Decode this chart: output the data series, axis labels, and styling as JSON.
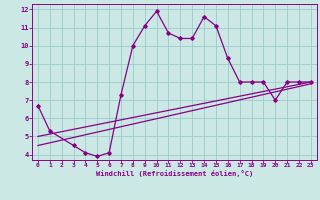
{
  "xlabel": "Windchill (Refroidissement éolien,°C)",
  "background_color": "#cce8e4",
  "line_color": "#880088",
  "grid_color": "#99cccc",
  "xlim": [
    -0.5,
    23.5
  ],
  "ylim": [
    3.7,
    12.3
  ],
  "xticks": [
    0,
    1,
    2,
    3,
    4,
    5,
    6,
    7,
    8,
    9,
    10,
    11,
    12,
    13,
    14,
    15,
    16,
    17,
    18,
    19,
    20,
    21,
    22,
    23
  ],
  "yticks": [
    4,
    5,
    6,
    7,
    8,
    9,
    10,
    11,
    12
  ],
  "curve1_x": [
    0,
    1,
    3,
    4,
    5,
    6,
    7,
    8,
    9,
    10,
    11,
    12,
    13,
    14,
    15,
    16,
    17,
    18,
    19,
    20,
    21,
    22,
    23
  ],
  "curve1_y": [
    6.7,
    5.3,
    4.5,
    4.1,
    3.9,
    4.1,
    7.3,
    10.0,
    11.1,
    11.9,
    10.7,
    10.4,
    10.4,
    11.6,
    11.1,
    9.3,
    8.0,
    8.0,
    8.0,
    7.0,
    8.0,
    8.0,
    8.0
  ],
  "curve2_x": [
    0,
    23
  ],
  "curve2_y": [
    4.5,
    7.9
  ],
  "curve3_x": [
    0,
    23
  ],
  "curve3_y": [
    5.0,
    8.0
  ]
}
